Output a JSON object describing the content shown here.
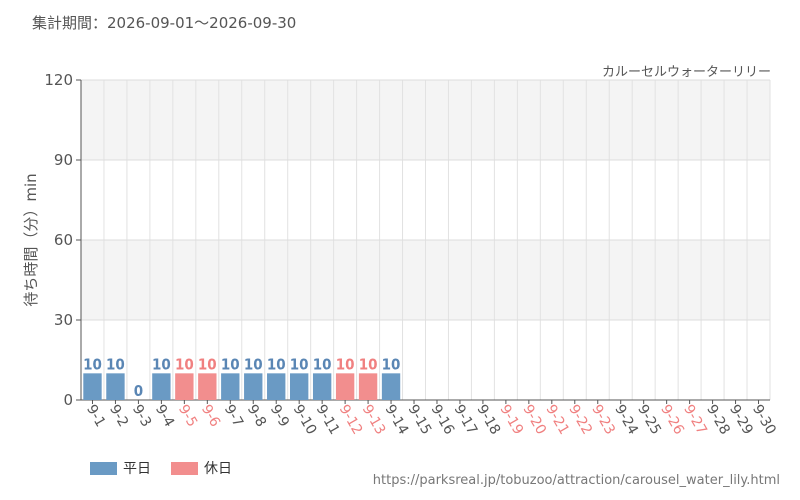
{
  "header": {
    "period": "集計期間：2026-09-01～2026-09-30",
    "attraction": "カルーセルウォーターリリー",
    "url": "https://parksreal.jp/tobuzoo/attraction/carousel_water_lily.html"
  },
  "legend": [
    {
      "label": "平日",
      "color": "#6a9ac4"
    },
    {
      "label": "休日",
      "color": "#f28e8e"
    }
  ],
  "colors": {
    "weekday": "#6a9ac4",
    "weekday_label": "#5a86b4",
    "holiday": "#f28e8e",
    "holiday_label": "#f08080",
    "axis_text": "#555555"
  },
  "chart_data": {
    "type": "bar",
    "ylabel": "待ち時間（分）min",
    "ylim": [
      0,
      120
    ],
    "yticks": [
      0,
      30,
      60,
      90,
      120
    ],
    "grid": true,
    "categories": [
      "9-1",
      "9-2",
      "9-3",
      "9-4",
      "9-5",
      "9-6",
      "9-7",
      "9-8",
      "9-9",
      "9-10",
      "9-11",
      "9-12",
      "9-13",
      "9-14",
      "9-15",
      "9-16",
      "9-17",
      "9-18",
      "9-19",
      "9-20",
      "9-21",
      "9-22",
      "9-23",
      "9-24",
      "9-25",
      "9-26",
      "9-27",
      "9-28",
      "9-29",
      "9-30"
    ],
    "values": [
      10,
      10,
      0,
      10,
      10,
      10,
      10,
      10,
      10,
      10,
      10,
      10,
      10,
      10,
      null,
      null,
      null,
      null,
      null,
      null,
      null,
      null,
      null,
      null,
      null,
      null,
      null,
      null,
      null,
      null
    ],
    "holiday": [
      false,
      false,
      false,
      false,
      true,
      true,
      false,
      false,
      false,
      false,
      false,
      true,
      true,
      false,
      false,
      false,
      false,
      false,
      true,
      true,
      true,
      true,
      true,
      false,
      false,
      true,
      true,
      false,
      false,
      false
    ]
  }
}
